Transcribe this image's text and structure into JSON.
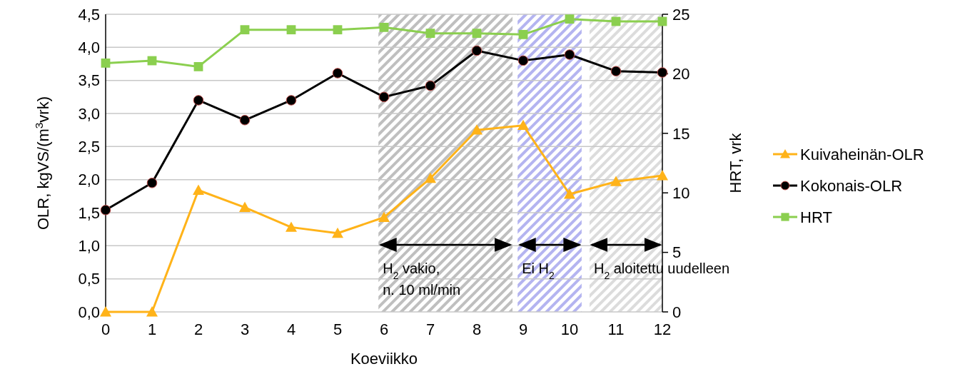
{
  "chart_data": {
    "type": "line",
    "xlabel": "Koeviikko",
    "ylabel": "OLR, kgVS/(m$^{3}$vrk)",
    "y2label": "HRT, vrk",
    "x": [
      0,
      1,
      2,
      3,
      4,
      5,
      6,
      7,
      8,
      9,
      10,
      11,
      12
    ],
    "xlim": [
      0,
      12
    ],
    "xticks": [
      0,
      1,
      2,
      3,
      4,
      5,
      6,
      7,
      8,
      9,
      10,
      11,
      12
    ],
    "ylim": [
      0,
      4.5
    ],
    "yticks": [
      {
        "value": 0,
        "label": "0,0"
      },
      {
        "value": 0.5,
        "label": "0,5"
      },
      {
        "value": 1,
        "label": "1,0"
      },
      {
        "value": 1.5,
        "label": "1,5"
      },
      {
        "value": 2,
        "label": "2,0"
      },
      {
        "value": 2.5,
        "label": "2,5"
      },
      {
        "value": 3,
        "label": "3,0"
      },
      {
        "value": 3.5,
        "label": "3,5"
      },
      {
        "value": 4,
        "label": "4,0"
      },
      {
        "value": 4.5,
        "label": "4,5"
      }
    ],
    "y2lim": [
      0,
      25
    ],
    "y2ticks": [
      0,
      5,
      10,
      15,
      20,
      25
    ],
    "series": [
      {
        "name": "Kuivaheinän-OLR",
        "color": "#ffb319",
        "marker": "triangle",
        "values": [
          0,
          0,
          1.84,
          1.58,
          1.28,
          1.19,
          1.43,
          2.02,
          2.75,
          2.82,
          1.78,
          1.97,
          2.06
        ]
      },
      {
        "name": "Kokonais-OLR",
        "color": "#000000",
        "marker": "circle",
        "values": [
          1.54,
          1.95,
          3.2,
          2.9,
          3.2,
          3.61,
          3.25,
          3.42,
          3.95,
          3.8,
          3.89,
          3.64,
          3.62
        ]
      },
      {
        "name": "HRT",
        "color": "#8bcf4f",
        "marker": "square",
        "axis": "y2",
        "values": [
          20.9,
          21.1,
          20.6,
          23.7,
          23.7,
          23.7,
          23.9,
          23.4,
          23.4,
          23.3,
          24.6,
          24.4,
          24.4
        ]
      }
    ],
    "bands": [
      {
        "axis": "x",
        "from": 5.88,
        "to": 8.77,
        "label": "H$_{2}$ vakio, n. 10 ml/min",
        "color": "#bfbfbf"
      },
      {
        "axis": "x",
        "from": 8.88,
        "to": 10.26,
        "label": "Ei H$_{2}$",
        "color": "#b4b4f0"
      },
      {
        "axis": "x",
        "from": 10.43,
        "to": 12,
        "label": "H$_{2}$ aloitettu uudelleen",
        "color": "#dcdcdc"
      }
    ],
    "grid": "y",
    "legend": "right",
    "line_style": "solid"
  }
}
